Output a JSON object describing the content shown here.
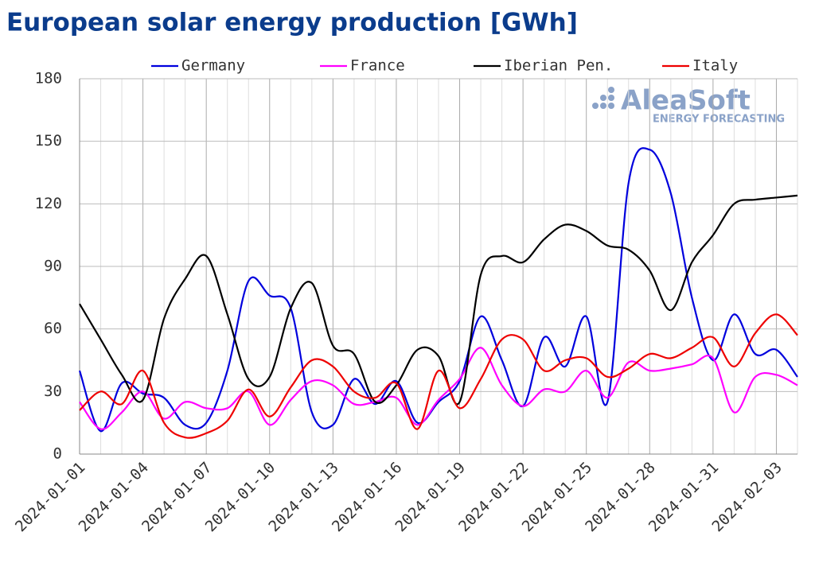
{
  "chart_data": {
    "type": "line",
    "title": "European solar energy production [GWh]",
    "watermark": [
      "AleaSoft",
      "ENERGY FORECASTING"
    ],
    "x": [
      "2024-01-01",
      "2024-01-02",
      "2024-01-03",
      "2024-01-04",
      "2024-01-05",
      "2024-01-06",
      "2024-01-07",
      "2024-01-08",
      "2024-01-09",
      "2024-01-10",
      "2024-01-11",
      "2024-01-12",
      "2024-01-13",
      "2024-01-14",
      "2024-01-15",
      "2024-01-16",
      "2024-01-17",
      "2024-01-18",
      "2024-01-19",
      "2024-01-20",
      "2024-01-21",
      "2024-01-22",
      "2024-01-23",
      "2024-01-24",
      "2024-01-25",
      "2024-01-26",
      "2024-01-27",
      "2024-01-28",
      "2024-01-29",
      "2024-01-30",
      "2024-01-31",
      "2024-02-01",
      "2024-02-02",
      "2024-02-03",
      "2024-02-04"
    ],
    "series": [
      {
        "name": "Germany",
        "color": "#0000dd",
        "values": [
          40,
          11,
          34,
          29,
          27,
          14,
          15,
          40,
          83,
          76,
          70,
          20,
          14,
          36,
          24,
          35,
          15,
          25,
          35,
          66,
          45,
          23,
          56,
          42,
          66,
          25,
          130,
          146,
          125,
          75,
          45,
          67,
          48,
          50,
          37
        ]
      },
      {
        "name": "France",
        "color": "#ff00ff",
        "values": [
          25,
          12,
          20,
          30,
          17,
          25,
          22,
          22,
          30,
          14,
          26,
          35,
          33,
          24,
          25,
          27,
          14,
          26,
          36,
          51,
          33,
          23,
          31,
          30,
          40,
          27,
          44,
          40,
          41,
          43,
          46,
          20,
          37,
          38,
          33
        ]
      },
      {
        "name": "Iberian Pen.",
        "color": "#000000",
        "values": [
          72,
          55,
          38,
          26,
          65,
          84,
          95,
          67,
          36,
          37,
          70,
          82,
          52,
          48,
          25,
          33,
          50,
          47,
          25,
          86,
          95,
          92,
          103,
          110,
          107,
          100,
          98,
          88,
          69,
          92,
          105,
          120,
          122,
          123,
          124
        ]
      },
      {
        "name": "Italy",
        "color": "#ee0000",
        "values": [
          21,
          30,
          24,
          40,
          15,
          8,
          10,
          16,
          31,
          18,
          32,
          45,
          42,
          30,
          27,
          34,
          12,
          40,
          22,
          36,
          55,
          55,
          40,
          45,
          46,
          37,
          41,
          48,
          46,
          51,
          56,
          42,
          58,
          67,
          57
        ]
      }
    ],
    "ylim": [
      0,
      180
    ],
    "yticks": [
      0,
      30,
      60,
      90,
      120,
      150,
      180
    ],
    "grid": true,
    "legend": "top"
  }
}
